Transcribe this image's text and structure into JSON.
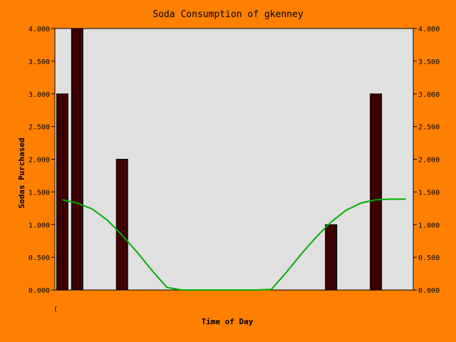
{
  "chart_data": {
    "type": "bar",
    "title": "Soda Consumption of gkenney",
    "xlabel": "Time of Day",
    "ylabel": "Sodas Purchased",
    "x_tick_label": "(",
    "ylim": [
      0,
      4
    ],
    "y_ticks": [
      "0.000",
      "0.500",
      "1.000",
      "1.500",
      "2.000",
      "2.500",
      "3.000",
      "3.500",
      "4.000"
    ],
    "bars": [
      {
        "slot": 0,
        "value": 3
      },
      {
        "slot": 1,
        "value": 4
      },
      {
        "slot": 4,
        "value": 2
      },
      {
        "slot": 18,
        "value": 1
      },
      {
        "slot": 21,
        "value": 3
      }
    ],
    "trend_line": {
      "x": [
        0,
        1,
        2,
        3,
        4,
        5,
        6,
        7,
        8,
        9,
        10,
        11,
        12,
        13,
        14,
        15,
        16,
        17,
        18,
        19,
        20,
        21,
        22,
        23
      ],
      "values": [
        1.38,
        1.33,
        1.24,
        1.07,
        0.84,
        0.58,
        0.3,
        0.04,
        0,
        0,
        0,
        0,
        0,
        0,
        0.01,
        0.27,
        0.55,
        0.81,
        1.04,
        1.22,
        1.33,
        1.38,
        1.39,
        1.39
      ]
    },
    "colors": {
      "background": "#ff8000",
      "plot_area": "#e0e0e0",
      "bar_fill": "#7a0000",
      "bar_stripe": "#000000",
      "trend": "#00b000"
    },
    "grid": false,
    "legend": "none"
  }
}
